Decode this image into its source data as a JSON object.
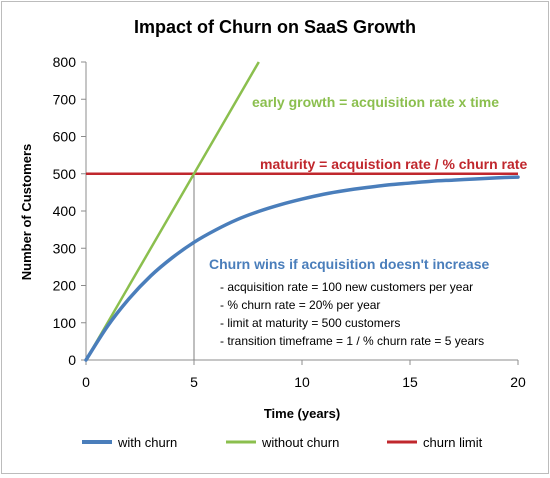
{
  "chart_data": {
    "type": "line",
    "title": "Impact of Churn on SaaS Growth",
    "xlabel": "Time (years)",
    "ylabel": "Number of Customers",
    "xlim": [
      0,
      20
    ],
    "ylim": [
      0,
      800
    ],
    "xticks": [
      0,
      5,
      10,
      15,
      20
    ],
    "yticks": [
      0,
      100,
      200,
      300,
      400,
      500,
      600,
      700,
      800
    ],
    "grid": false,
    "legend_position": "bottom",
    "series": [
      {
        "name": "with churn",
        "color": "#4a7ebb",
        "x": [
          0,
          1,
          2,
          3,
          4,
          5,
          6,
          7,
          8,
          9,
          10,
          11,
          12,
          13,
          14,
          15,
          16,
          17,
          18,
          19,
          20
        ],
        "values": [
          0,
          91,
          165,
          226,
          275,
          316,
          349,
          377,
          399,
          417,
          432,
          445,
          455,
          463,
          470,
          475,
          480,
          483,
          486,
          489,
          491
        ]
      },
      {
        "name": "without churn",
        "color": "#8bbf4e",
        "x": [
          0,
          8
        ],
        "values": [
          0,
          800
        ]
      },
      {
        "name": "churn limit",
        "color": "#c0272d",
        "x": [
          0,
          20
        ],
        "values": [
          500,
          500
        ]
      }
    ],
    "annotations": {
      "early_growth": "early growth = acquisition rate x time",
      "maturity": "maturity = acquistion rate / % churn rate",
      "churn_wins": "Churn wins if acquisition doesn't increase",
      "notes": [
        "- acquisition rate = 100  new customers per year",
        "- % churn rate = 20% per year",
        "- limit at maturity = 500  customers",
        "- transition timeframe =  1 / % churn rate = 5 years"
      ]
    },
    "marker_x": 5
  }
}
